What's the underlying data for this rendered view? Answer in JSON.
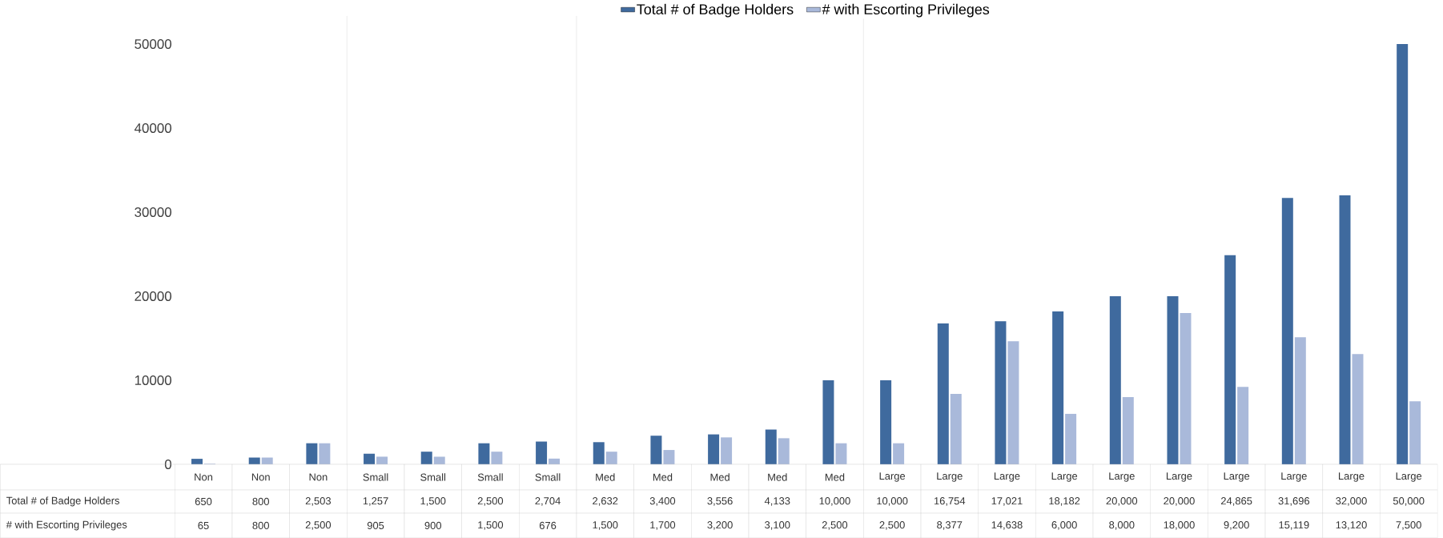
{
  "chart_data": {
    "type": "bar",
    "categories": [
      "Non",
      "Non",
      "Non",
      "Small",
      "Small",
      "Small",
      "Small",
      "Med",
      "Med",
      "Med",
      "Med",
      "Med",
      "Large",
      "Large",
      "Large",
      "Large",
      "Large",
      "Large",
      "Large",
      "Large",
      "Large",
      "Large"
    ],
    "series": [
      {
        "name": "Total # of Badge Holders",
        "color": "#3f6a9e",
        "values": [
          650,
          800,
          2503,
          1257,
          1500,
          2500,
          2704,
          2632,
          3400,
          3556,
          4133,
          10000,
          10000,
          16754,
          17021,
          18182,
          20000,
          20000,
          24865,
          31696,
          32000,
          50000
        ],
        "value_labels": [
          "650",
          "800",
          "2,503",
          "1,257",
          "1,500",
          "2,500",
          "2,704",
          "2,632",
          "3,400",
          "3,556",
          "4,133",
          "10,000",
          "10,000",
          "16,754",
          "17,021",
          "18,182",
          "20,000",
          "20,000",
          "24,865",
          "31,696",
          "32,000",
          "50,000"
        ]
      },
      {
        "name": "# with Escorting Privileges",
        "color": "#a9b9da",
        "values": [
          65,
          800,
          2500,
          905,
          900,
          1500,
          676,
          1500,
          1700,
          3200,
          3100,
          2500,
          2500,
          8377,
          14638,
          6000,
          8000,
          18000,
          9200,
          15119,
          13120,
          7500
        ],
        "value_labels": [
          "65",
          "800",
          "2,500",
          "905",
          "900",
          "1,500",
          "676",
          "1,500",
          "1,700",
          "3,200",
          "3,100",
          "2,500",
          "2,500",
          "8,377",
          "14,638",
          "6,000",
          "8,000",
          "18,000",
          "9,200",
          "15,119",
          "13,120",
          "7,500"
        ]
      }
    ],
    "ylim": [
      0,
      50000
    ],
    "yticks": [
      0,
      10000,
      20000,
      30000,
      40000,
      50000
    ],
    "legend": "top",
    "grid": false
  }
}
